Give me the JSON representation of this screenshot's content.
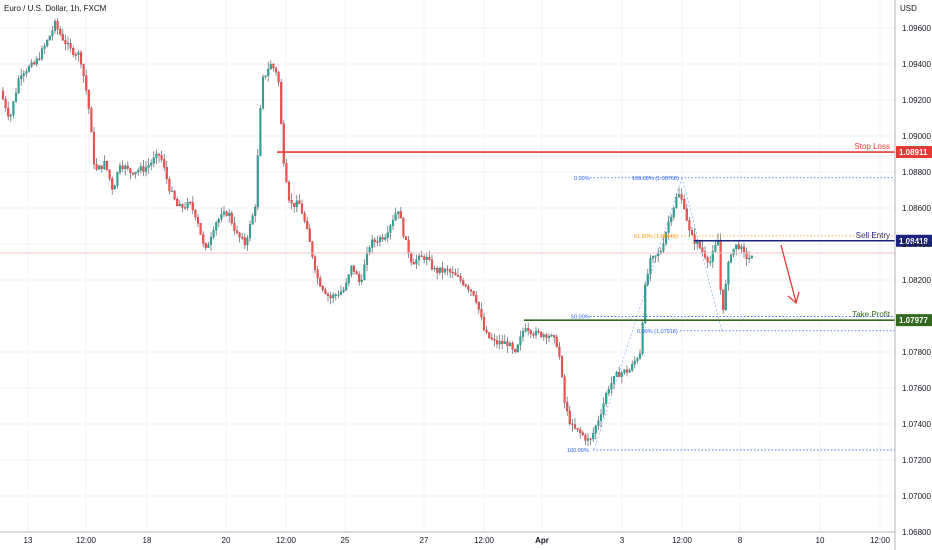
{
  "header": {
    "title": "Euro / U.S. Dollar, 1h, FXCM",
    "currency": "USD"
  },
  "chart_data": {
    "type": "candlestick",
    "symbol": "Euro / U.S. Dollar",
    "interval": "1h",
    "source": "FXCM",
    "ylim": [
      1.0678,
      1.0984
    ],
    "y_ticks": [
      "1.09600",
      "1.09400",
      "1.09200",
      "1.09000",
      "1.08800",
      "1.08600",
      "1.08400",
      "1.08200",
      "1.07800",
      "1.07600",
      "1.07400",
      "1.07200",
      "1.07000",
      "1.06800"
    ],
    "x_ticks": [
      "13",
      "12:00",
      "18",
      "20",
      "12:00",
      "25",
      "27",
      "12:00",
      "Apr",
      "3",
      "12:00",
      "8",
      "10",
      "12:00"
    ],
    "price_path": [
      [
        0,
        1.0925
      ],
      [
        10,
        1.091
      ],
      [
        20,
        1.0935
      ],
      [
        35,
        1.094
      ],
      [
        45,
        1.095
      ],
      [
        55,
        1.0962
      ],
      [
        62,
        1.0955
      ],
      [
        70,
        1.0948
      ],
      [
        80,
        1.0945
      ],
      [
        88,
        1.092
      ],
      [
        95,
        1.088
      ],
      [
        105,
        1.0885
      ],
      [
        113,
        1.087
      ],
      [
        120,
        1.0885
      ],
      [
        130,
        1.088
      ],
      [
        145,
        1.0882
      ],
      [
        160,
        1.089
      ],
      [
        170,
        1.087
      ],
      [
        178,
        1.086
      ],
      [
        190,
        1.0862
      ],
      [
        197,
        1.0855
      ],
      [
        205,
        1.0835
      ],
      [
        215,
        1.0852
      ],
      [
        228,
        1.0858
      ],
      [
        237,
        1.0845
      ],
      [
        245,
        1.084
      ],
      [
        255,
        1.086
      ],
      [
        262,
        1.093
      ],
      [
        270,
        1.094
      ],
      [
        278,
        1.0935
      ],
      [
        283,
        1.089
      ],
      [
        290,
        1.0862
      ],
      [
        300,
        1.0862
      ],
      [
        308,
        1.0845
      ],
      [
        318,
        1.082
      ],
      [
        330,
        1.081
      ],
      [
        345,
        1.0815
      ],
      [
        352,
        1.0828
      ],
      [
        360,
        1.0818
      ],
      [
        370,
        1.084
      ],
      [
        385,
        1.0845
      ],
      [
        398,
        1.086
      ],
      [
        405,
        1.0842
      ],
      [
        412,
        1.083
      ],
      [
        425,
        1.0833
      ],
      [
        435,
        1.0825
      ],
      [
        448,
        1.0825
      ],
      [
        465,
        1.0818
      ],
      [
        475,
        1.0812
      ],
      [
        485,
        1.079
      ],
      [
        495,
        1.0785
      ],
      [
        508,
        1.0785
      ],
      [
        515,
        1.0778
      ],
      [
        525,
        1.0795
      ],
      [
        535,
        1.079
      ],
      [
        548,
        1.079
      ],
      [
        558,
        1.0784
      ],
      [
        565,
        1.075
      ],
      [
        572,
        1.0738
      ],
      [
        580,
        1.0735
      ],
      [
        590,
        1.073
      ],
      [
        600,
        1.0745
      ],
      [
        608,
        1.076
      ],
      [
        618,
        1.0768
      ],
      [
        630,
        1.077
      ],
      [
        640,
        1.078
      ],
      [
        645,
        1.0815
      ],
      [
        650,
        1.083
      ],
      [
        660,
        1.0835
      ],
      [
        670,
        1.0855
      ],
      [
        678,
        1.0868
      ],
      [
        684,
        1.0862
      ],
      [
        690,
        1.0845
      ],
      [
        700,
        1.0838
      ],
      [
        710,
        1.083
      ],
      [
        718,
        1.0842
      ],
      [
        722,
        1.08
      ],
      [
        730,
        1.0835
      ],
      [
        738,
        1.084
      ],
      [
        745,
        1.0833
      ],
      [
        752,
        1.0832
      ]
    ],
    "annotations": {
      "stop_loss": {
        "label": "Stop Loss",
        "price": 1.08911,
        "price_label": "1.08911",
        "color": "#e53935"
      },
      "sell_entry": {
        "label": "Sell Entry",
        "price": 1.08418,
        "price_label": "1.08418",
        "color": "#1a237e"
      },
      "take_profit": {
        "label": "Take Profit",
        "price": 1.07977,
        "price_label": "1.07977",
        "color": "#33691e"
      }
    },
    "fib_upper": [
      {
        "label": "0.00%",
        "price": 1.08768
      },
      {
        "label": "100.00% (1.08768)",
        "price": 1.08768
      },
      {
        "label": "61.80% (1.08445)",
        "price": 1.08445
      },
      {
        "label": "0.00% (1.07918)",
        "price": 1.07918
      }
    ],
    "fib_lower": [
      {
        "label": "50.00%",
        "price": 1.07997
      },
      {
        "label": "100.00%",
        "price": 1.07256
      }
    ],
    "arrow": {
      "direction": "down",
      "color": "#e53935"
    }
  }
}
